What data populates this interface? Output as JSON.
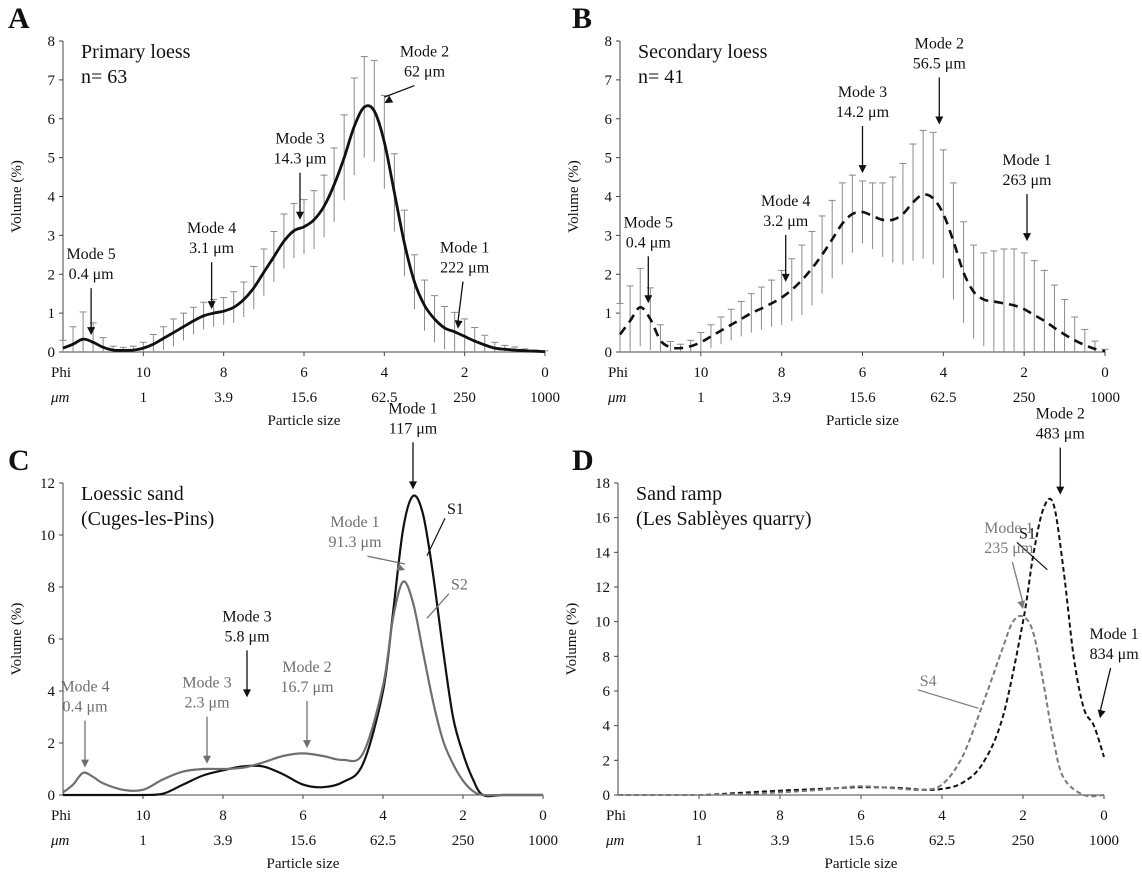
{
  "figure": {
    "row_label_phi": "Phi",
    "row_label_um": "μm"
  },
  "chart_data": [
    {
      "panel": "A",
      "type": "line",
      "title": "Primary loess",
      "subtitle": "n= 63",
      "xlabel": "Particle size",
      "ylabel": "Volume (%)",
      "ylim": [
        0,
        8
      ],
      "yticks": [
        0,
        1,
        2,
        3,
        4,
        5,
        6,
        7,
        8
      ],
      "xlim_phi": [
        12,
        0
      ],
      "phi_ticks": [
        "10",
        "8",
        "6",
        "4",
        "2",
        "0"
      ],
      "um_ticks": [
        "1",
        "3.9",
        "15.6",
        "62.5",
        "250",
        "1000"
      ],
      "series": [
        {
          "style": "solid",
          "color": "#111111",
          "error_bars": true,
          "x": [
            12,
            11.75,
            11.5,
            11.25,
            11,
            10.75,
            10.5,
            10.25,
            10,
            9.75,
            9.5,
            9.25,
            9,
            8.75,
            8.5,
            8.25,
            8,
            7.75,
            7.5,
            7.25,
            7,
            6.75,
            6.5,
            6.25,
            6,
            5.75,
            5.5,
            5.25,
            5,
            4.75,
            4.5,
            4.25,
            4,
            3.75,
            3.5,
            3.25,
            3,
            2.75,
            2.5,
            2.25,
            2,
            1.75,
            1.5,
            1.25,
            1,
            0.75,
            0.5,
            0.25,
            0
          ],
          "y": [
            0.1,
            0.2,
            0.33,
            0.25,
            0.12,
            0.05,
            0.04,
            0.05,
            0.1,
            0.2,
            0.35,
            0.5,
            0.65,
            0.8,
            0.93,
            1.0,
            1.05,
            1.15,
            1.35,
            1.65,
            2.05,
            2.45,
            2.85,
            3.12,
            3.22,
            3.4,
            3.75,
            4.3,
            5.0,
            5.8,
            6.3,
            6.2,
            5.4,
            4.1,
            2.8,
            1.8,
            1.2,
            0.85,
            0.62,
            0.52,
            0.4,
            0.28,
            0.18,
            0.1,
            0.07,
            0.05,
            0.03,
            0.02,
            0.01
          ],
          "err": [
            0.2,
            0.45,
            0.7,
            0.5,
            0.25,
            0.1,
            0.08,
            0.1,
            0.15,
            0.25,
            0.3,
            0.35,
            0.35,
            0.35,
            0.35,
            0.35,
            0.35,
            0.4,
            0.45,
            0.55,
            0.6,
            0.65,
            0.7,
            0.7,
            0.7,
            0.75,
            0.8,
            0.95,
            1.1,
            1.25,
            1.3,
            1.3,
            1.2,
            1.0,
            0.85,
            0.7,
            0.65,
            0.6,
            0.55,
            0.5,
            0.45,
            0.35,
            0.25,
            0.15,
            0.1,
            0.08,
            0.05,
            0.03,
            0.02
          ]
        }
      ],
      "annotations": [
        {
          "lines": [
            "Mode 5",
            "0.4 μm"
          ],
          "phi": 11.3,
          "y": 0.33,
          "color": "#111111"
        },
        {
          "lines": [
            "Mode 4",
            "3.1 μm"
          ],
          "phi": 8.3,
          "y": 1.0,
          "color": "#111111"
        },
        {
          "lines": [
            "Mode 3",
            "14.3 μm"
          ],
          "phi": 6.1,
          "y": 3.3,
          "color": "#111111"
        },
        {
          "lines": [
            "Mode 2",
            "62 μm"
          ],
          "phi": 4.0,
          "y": 6.3,
          "color": "#111111",
          "text_phi": 3.0,
          "text_y": 7.6
        },
        {
          "lines": [
            "Mode 1",
            "222 μm"
          ],
          "phi": 2.17,
          "y": 0.5,
          "color": "#111111",
          "text_phi": 2.0
        }
      ]
    },
    {
      "panel": "B",
      "type": "line",
      "title": "Secondary loess",
      "subtitle": "n= 41",
      "xlabel": "Particle size",
      "ylabel": "Volume (%)",
      "ylim": [
        0,
        8
      ],
      "yticks": [
        0,
        1,
        2,
        3,
        4,
        5,
        6,
        7,
        8
      ],
      "xlim_phi": [
        12,
        0
      ],
      "phi_ticks": [
        "10",
        "8",
        "6",
        "4",
        "2",
        "0"
      ],
      "um_ticks": [
        "1",
        "3.9",
        "15.6",
        "62.5",
        "250",
        "1000"
      ],
      "series": [
        {
          "style": "dashed",
          "color": "#111111",
          "error_bars": true,
          "x": [
            12,
            11.75,
            11.5,
            11.25,
            11,
            10.75,
            10.5,
            10.25,
            10,
            9.75,
            9.5,
            9.25,
            9,
            8.75,
            8.5,
            8.25,
            8,
            7.75,
            7.5,
            7.25,
            7,
            6.75,
            6.5,
            6.25,
            6,
            5.75,
            5.5,
            5.25,
            5,
            4.75,
            4.5,
            4.25,
            4,
            3.75,
            3.5,
            3.25,
            3,
            2.75,
            2.5,
            2.25,
            2,
            1.75,
            1.5,
            1.25,
            1,
            0.75,
            0.5,
            0.25,
            0
          ],
          "y": [
            0.45,
            0.8,
            1.15,
            0.85,
            0.3,
            0.12,
            0.1,
            0.15,
            0.25,
            0.4,
            0.55,
            0.7,
            0.85,
            1.0,
            1.12,
            1.25,
            1.4,
            1.6,
            1.85,
            2.15,
            2.5,
            2.9,
            3.3,
            3.55,
            3.6,
            3.5,
            3.4,
            3.4,
            3.55,
            3.85,
            4.05,
            3.95,
            3.55,
            2.85,
            2.05,
            1.55,
            1.35,
            1.3,
            1.25,
            1.2,
            1.1,
            0.95,
            0.8,
            0.62,
            0.45,
            0.3,
            0.18,
            0.08,
            0.02
          ],
          "err": [
            0.8,
            0.9,
            1.0,
            0.8,
            0.4,
            0.15,
            0.1,
            0.15,
            0.25,
            0.3,
            0.35,
            0.4,
            0.45,
            0.5,
            0.55,
            0.6,
            0.7,
            0.8,
            0.9,
            0.95,
            1.0,
            1.0,
            1.05,
            1.0,
            0.8,
            0.85,
            0.95,
            1.1,
            1.3,
            1.5,
            1.65,
            1.7,
            1.65,
            1.5,
            1.3,
            1.2,
            1.2,
            1.3,
            1.4,
            1.45,
            1.45,
            1.4,
            1.3,
            1.1,
            0.9,
            0.6,
            0.4,
            0.2,
            0.05
          ]
        }
      ],
      "annotations": [
        {
          "lines": [
            "Mode 5",
            "0.4 μm"
          ],
          "phi": 11.3,
          "y": 1.15,
          "color": "#111111"
        },
        {
          "lines": [
            "Mode 4",
            "3.2 μm"
          ],
          "phi": 7.9,
          "y": 1.7,
          "color": "#111111"
        },
        {
          "lines": [
            "Mode 3",
            "14.2 μm"
          ],
          "phi": 6.0,
          "y": 4.5,
          "color": "#111111"
        },
        {
          "lines": [
            "Mode 2",
            "56.5 μm"
          ],
          "phi": 4.1,
          "y": 5.75,
          "color": "#111111"
        },
        {
          "lines": [
            "Mode 1",
            "263 μm"
          ],
          "phi": 1.93,
          "y": 2.75,
          "color": "#111111"
        }
      ]
    },
    {
      "panel": "C",
      "type": "line",
      "title": "Loessic sand",
      "subtitle": "(Cuges-les-Pins)",
      "xlabel": "Particle size",
      "ylabel": "Volume (%)",
      "ylim": [
        0,
        12
      ],
      "yticks": [
        0,
        2,
        4,
        6,
        8,
        10,
        12
      ],
      "xlim_phi": [
        12,
        0
      ],
      "phi_ticks": [
        "10",
        "8",
        "6",
        "4",
        "2",
        "0"
      ],
      "um_ticks": [
        "1",
        "3.9",
        "15.6",
        "62.5",
        "250",
        "1000"
      ],
      "series": [
        {
          "name": "S1",
          "style": "solid",
          "color": "#111111",
          "x": [
            12,
            11.5,
            11,
            10.5,
            10,
            9.5,
            9,
            8.5,
            8,
            7.5,
            7,
            6.5,
            6,
            5.5,
            5,
            4.5,
            4,
            3.75,
            3.5,
            3.25,
            3,
            2.75,
            2.5,
            2.25,
            2,
            1.75,
            1.5,
            1,
            0.5,
            0
          ],
          "y": [
            0,
            0,
            0,
            0,
            0,
            0.05,
            0.4,
            0.75,
            0.95,
            1.1,
            1.1,
            0.8,
            0.4,
            0.3,
            0.5,
            1.2,
            4.0,
            7.0,
            10.2,
            11.5,
            10.8,
            8.5,
            5.6,
            3.0,
            1.6,
            0.6,
            0,
            0,
            0,
            0
          ]
        },
        {
          "name": "S2",
          "style": "solid",
          "color": "#6f6f6f",
          "x": [
            12,
            11.75,
            11.5,
            11.25,
            11,
            10.5,
            10,
            9.5,
            9,
            8.5,
            8,
            7.5,
            7,
            6.5,
            6,
            5.5,
            5,
            4.5,
            4,
            3.75,
            3.5,
            3.25,
            3,
            2.75,
            2.5,
            2.25,
            2,
            1.75,
            1.5,
            1,
            0.5,
            0
          ],
          "y": [
            0.1,
            0.4,
            0.85,
            0.7,
            0.45,
            0.2,
            0.2,
            0.6,
            0.9,
            1.0,
            1.0,
            1.05,
            1.25,
            1.5,
            1.6,
            1.5,
            1.35,
            1.6,
            4.2,
            6.8,
            8.2,
            7.4,
            5.5,
            3.6,
            2.1,
            1.2,
            0.55,
            0.15,
            0,
            0,
            0,
            0
          ]
        }
      ],
      "series_labels": [
        {
          "text": "S1",
          "phi": 2.4,
          "y": 10.8,
          "color": "#111111",
          "leader_phi": 2.9,
          "leader_y": 9.2
        },
        {
          "text": "S2",
          "phi": 2.3,
          "y": 7.9,
          "color": "#6f6f6f",
          "leader_phi": 2.9,
          "leader_y": 6.8
        }
      ],
      "annotations": [
        {
          "lines": [
            "Mode 4",
            "0.4 μm"
          ],
          "phi": 11.45,
          "y": 0.9,
          "color": "#6f6f6f"
        },
        {
          "lines": [
            "Mode 3",
            "2.3 μm"
          ],
          "phi": 8.4,
          "y": 1.05,
          "color": "#6f6f6f"
        },
        {
          "lines": [
            "Mode 3",
            "5.8 μm"
          ],
          "phi": 7.4,
          "y": 3.6,
          "color": "#111111"
        },
        {
          "lines": [
            "Mode 2",
            "16.7 μm"
          ],
          "phi": 5.9,
          "y": 1.65,
          "color": "#6f6f6f"
        },
        {
          "lines": [
            "Mode 1",
            "91.3 μm"
          ],
          "phi": 3.45,
          "y": 8.5,
          "color": "#6f6f6f",
          "text_phi": 4.7,
          "text_y": 10.3
        },
        {
          "lines": [
            "Mode 1",
            "117 μm"
          ],
          "phi": 3.25,
          "y": 11.6,
          "color": "#111111"
        }
      ]
    },
    {
      "panel": "D",
      "type": "line",
      "title": "Sand ramp",
      "subtitle": "(Les Sablèyes quarry)",
      "xlabel": "Particle size",
      "ylabel": "Volume (%)",
      "ylim": [
        0,
        18
      ],
      "yticks": [
        0,
        2,
        4,
        6,
        8,
        10,
        12,
        14,
        16,
        18
      ],
      "xlim_phi": [
        12,
        0
      ],
      "phi_ticks": [
        "10",
        "8",
        "6",
        "4",
        "2",
        "0"
      ],
      "um_ticks": [
        "1",
        "3.9",
        "15.6",
        "62.5",
        "250",
        "1000"
      ],
      "series": [
        {
          "name": "S1",
          "style": "dashed",
          "color": "#111111",
          "x": [
            12,
            11,
            10,
            9.5,
            9,
            8,
            7,
            6,
            5,
            4.5,
            4,
            3.5,
            3,
            2.5,
            2,
            1.75,
            1.5,
            1.25,
            1,
            0.75,
            0.5,
            0.25,
            0
          ],
          "y": [
            0,
            0,
            0,
            0.05,
            0.12,
            0.25,
            0.35,
            0.45,
            0.4,
            0.3,
            0.35,
            0.7,
            1.8,
            4.5,
            10.0,
            13.8,
            16.5,
            16.8,
            13.0,
            8.0,
            5.0,
            4.0,
            2.2
          ]
        },
        {
          "name": "S4",
          "style": "dashed",
          "color": "#7a7a7a",
          "x": [
            12,
            11,
            10,
            9,
            8,
            7,
            6,
            5,
            4.5,
            4,
            3.5,
            3,
            2.5,
            2.25,
            2,
            1.75,
            1.5,
            1.25,
            1,
            0.5,
            0
          ],
          "y": [
            0,
            0,
            0,
            0.05,
            0.15,
            0.3,
            0.5,
            0.35,
            0.3,
            0.6,
            2.2,
            5.2,
            8.5,
            10.0,
            10.3,
            9.4,
            6.5,
            3.2,
            1.0,
            0,
            0
          ]
        }
      ],
      "series_labels": [
        {
          "text": "S1",
          "phi": 2.1,
          "y": 14.8,
          "color": "#111111",
          "leader_phi": 1.4,
          "leader_y": 13.0
        },
        {
          "text": "S4",
          "phi": 4.55,
          "y": 6.3,
          "color": "#7a7a7a",
          "leader_phi": 3.1,
          "leader_y": 5.0
        }
      ],
      "annotations": [
        {
          "lines": [
            "Mode 1",
            "235 μm"
          ],
          "phi": 2.0,
          "y": 10.5,
          "color": "#7a7a7a",
          "text_phi": 2.35
        },
        {
          "lines": [
            "Mode 2",
            "483 μm"
          ],
          "phi": 1.08,
          "y": 17.1,
          "color": "#111111"
        },
        {
          "lines": [
            "Mode 1",
            "834 μm"
          ],
          "phi": 0.1,
          "y": 4.2,
          "color": "#111111",
          "text_phi": -0.25,
          "text_y": 9.0
        }
      ]
    }
  ]
}
